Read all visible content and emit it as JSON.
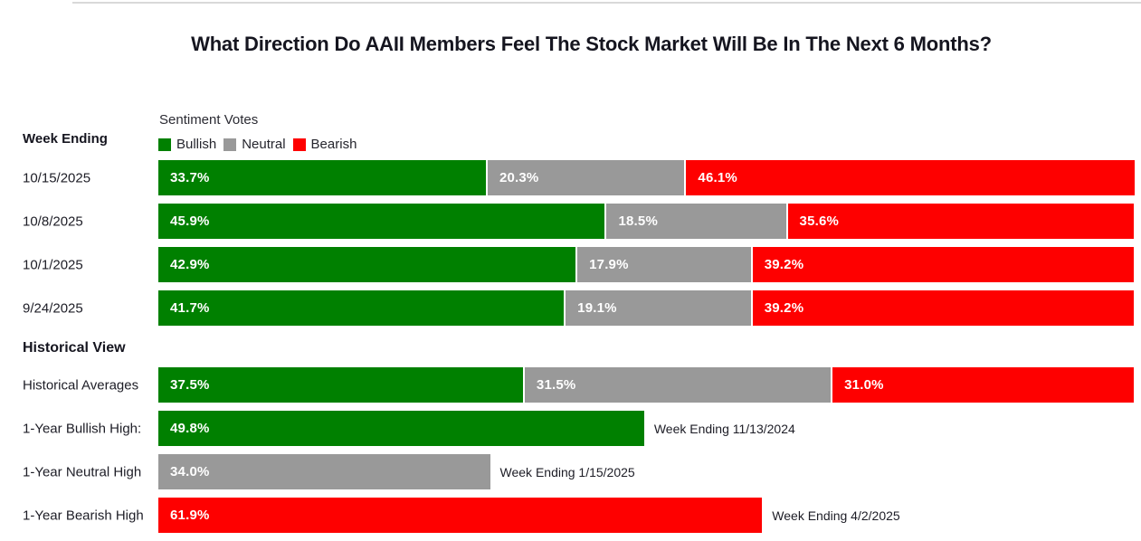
{
  "title": "What Direction Do AAII Members Feel The Stock Market Will Be In The Next 6 Months?",
  "chart_data": {
    "type": "bar",
    "variant": "horizontal-stacked",
    "xlim": [
      0,
      100
    ],
    "legend_title": "Sentiment Votes",
    "legend_position": "top",
    "grid": false,
    "colors": {
      "bullish": "#008000",
      "neutral": "#999999",
      "bearish": "#fe0000"
    },
    "legend": [
      {
        "label": "Bullish",
        "color": "#008000"
      },
      {
        "label": "Neutral",
        "color": "#999999"
      },
      {
        "label": "Bearish",
        "color": "#fe0000"
      }
    ],
    "row_header": "Week Ending",
    "weekly": [
      {
        "week": "10/15/2025",
        "bullish": 33.7,
        "neutral": 20.3,
        "bearish": 46.1,
        "bullish_label": "33.7%",
        "neutral_label": "20.3%",
        "bearish_label": "46.1%"
      },
      {
        "week": "10/8/2025",
        "bullish": 45.9,
        "neutral": 18.5,
        "bearish": 35.6,
        "bullish_label": "45.9%",
        "neutral_label": "18.5%",
        "bearish_label": "35.6%"
      },
      {
        "week": "10/1/2025",
        "bullish": 42.9,
        "neutral": 17.9,
        "bearish": 39.2,
        "bullish_label": "42.9%",
        "neutral_label": "17.9%",
        "bearish_label": "39.2%"
      },
      {
        "week": "9/24/2025",
        "bullish": 41.7,
        "neutral": 19.1,
        "bearish": 39.2,
        "bullish_label": "41.7%",
        "neutral_label": "19.1%",
        "bearish_label": "39.2%"
      }
    ],
    "historical_header": "Historical View",
    "historical_averages": {
      "label": "Historical Averages",
      "bullish": 37.5,
      "neutral": 31.5,
      "bearish": 31.0,
      "bullish_label": "37.5%",
      "neutral_label": "31.5%",
      "bearish_label": "31.0%"
    },
    "historical_highs": [
      {
        "label": "1-Year Bullish High:",
        "sentiment": "bullish",
        "value": 49.8,
        "value_label": "49.8%",
        "annotation": "Week Ending 11/13/2024"
      },
      {
        "label": "1-Year Neutral High",
        "sentiment": "neutral",
        "value": 34.0,
        "value_label": "34.0%",
        "annotation": "Week Ending 1/15/2025"
      },
      {
        "label": "1-Year Bearish High",
        "sentiment": "bearish",
        "value": 61.9,
        "value_label": "61.9%",
        "annotation": "Week Ending 4/2/2025"
      }
    ]
  }
}
